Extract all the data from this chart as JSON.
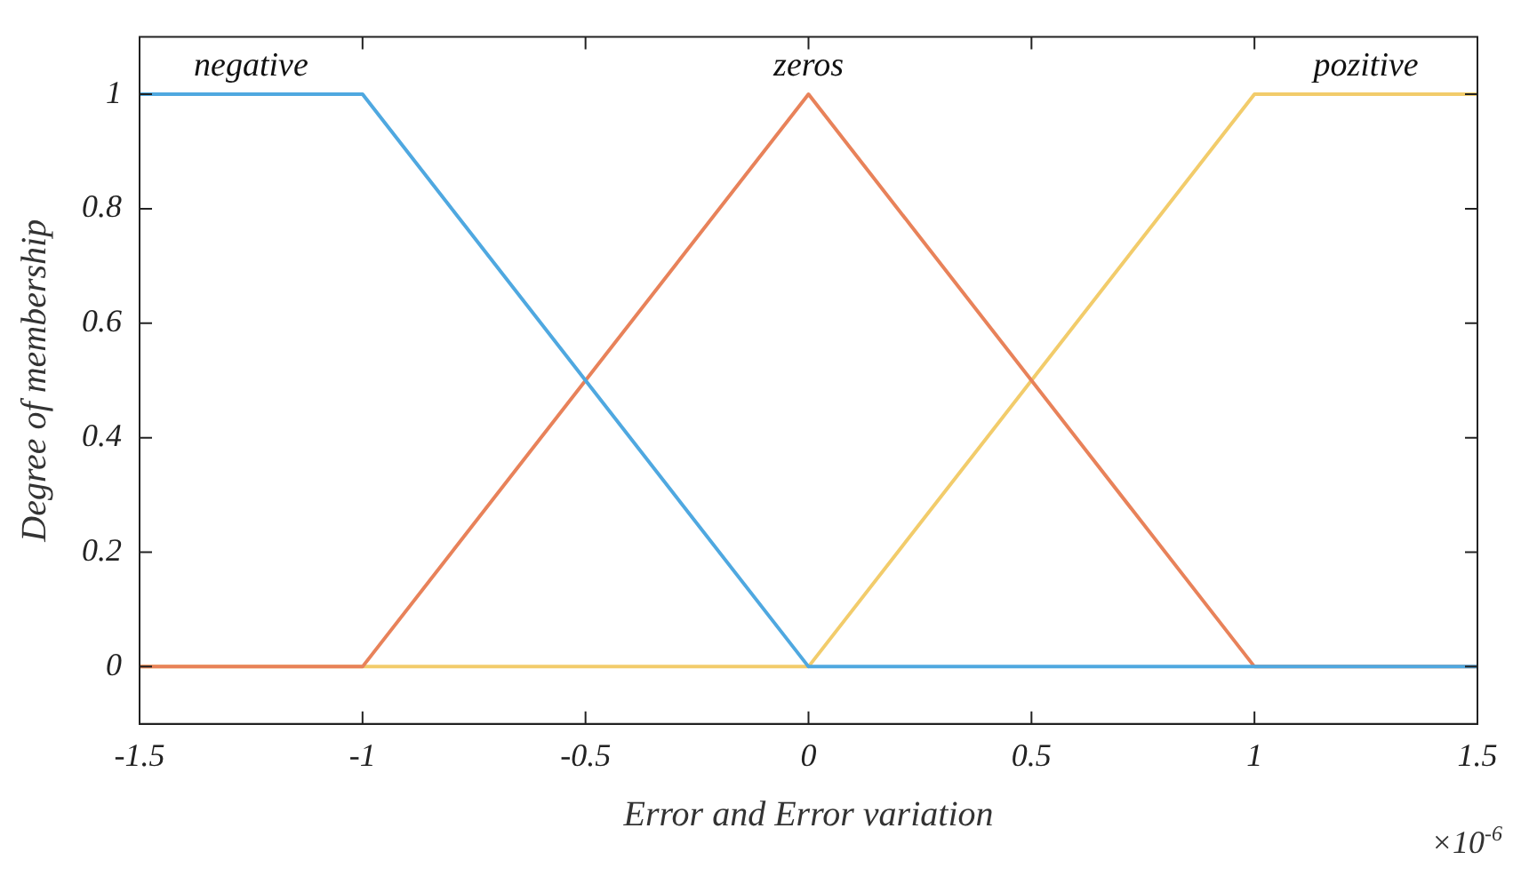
{
  "chart_data": {
    "type": "line",
    "xlabel": "Error and Error variation",
    "ylabel": "Degree of membership",
    "annotations": [
      "×10$^{-6}$"
    ],
    "xlim": [
      -1.5,
      1.5
    ],
    "xticks": [
      -1.5,
      -1,
      -0.5,
      0,
      0.5,
      1,
      1.5
    ],
    "ylim": [
      -0.1,
      1.1
    ],
    "yticks": [
      0,
      0.2,
      0.4,
      0.6,
      0.8,
      1
    ],
    "grid": false,
    "legend": false,
    "marker": "none",
    "line_style": "solid",
    "series": [
      {
        "name": "negative",
        "color": "#4fa8e0",
        "x": [
          -1.5,
          -1,
          0,
          1.5
        ],
        "values": [
          1,
          1,
          0,
          0
        ]
      },
      {
        "name": "zeros",
        "color": "#e8825a",
        "x": [
          -1.5,
          -1,
          0,
          1,
          1.5
        ],
        "values": [
          0,
          0,
          1,
          0,
          0
        ]
      },
      {
        "name": "pozitive",
        "color": "#f2cc6b",
        "x": [
          -1.5,
          0,
          1,
          1.5
        ],
        "values": [
          0,
          0,
          1,
          1
        ]
      }
    ]
  }
}
